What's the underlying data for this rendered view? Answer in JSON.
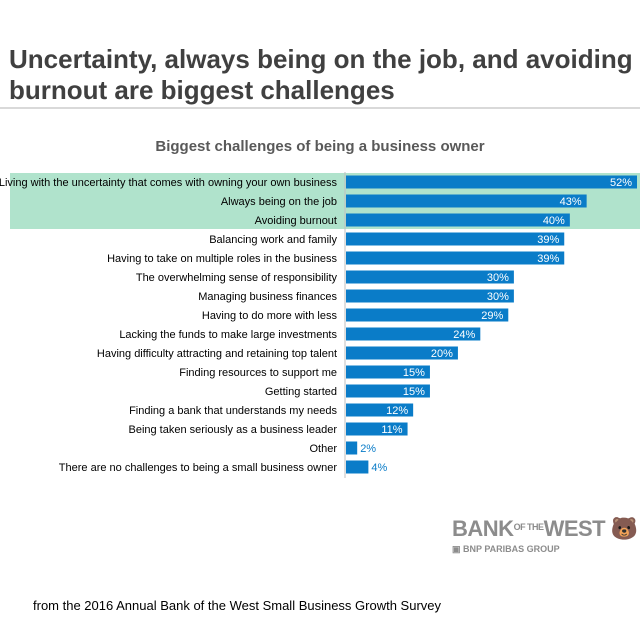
{
  "title": "Uncertainty, always being on the job, and avoiding burnout are biggest challenges",
  "footer": "from the 2016 Annual Bank of the West Small Business Growth Survey",
  "logo": {
    "name": "BANK OF THE WEST",
    "group": "BNP PARIBAS GROUP"
  },
  "colors": {
    "bar": "#0a7cc8",
    "highlight": "#b0e3cc"
  },
  "chart_data": {
    "type": "bar",
    "orientation": "horizontal",
    "title": "Biggest challenges of being a business owner",
    "xlim": [
      0,
      52
    ],
    "highlighted": [
      0,
      1,
      2
    ],
    "categories": [
      "Living with the uncertainty that comes with owning your own business",
      "Always being on the job",
      "Avoiding burnout",
      "Balancing work and family",
      "Having to take on multiple roles in the business",
      "The overwhelming sense of responsibility",
      "Managing business finances",
      "Having to do more with less",
      "Lacking the funds to make large investments",
      "Having difficulty attracting and retaining top talent",
      "Finding resources to support me",
      "Getting started",
      "Finding a bank that understands my needs",
      "Being taken seriously as a business leader",
      "Other",
      "There are no challenges to being a small business owner"
    ],
    "values": [
      52,
      43,
      40,
      39,
      39,
      30,
      30,
      29,
      24,
      20,
      15,
      15,
      12,
      11,
      2,
      4
    ],
    "labels": [
      "52%",
      "43%",
      "40%",
      "39%",
      "39%",
      "30%",
      "30%",
      "29%",
      "24%",
      "20%",
      "15%",
      "15%",
      "12%",
      "11%",
      "2%",
      "4%"
    ]
  }
}
